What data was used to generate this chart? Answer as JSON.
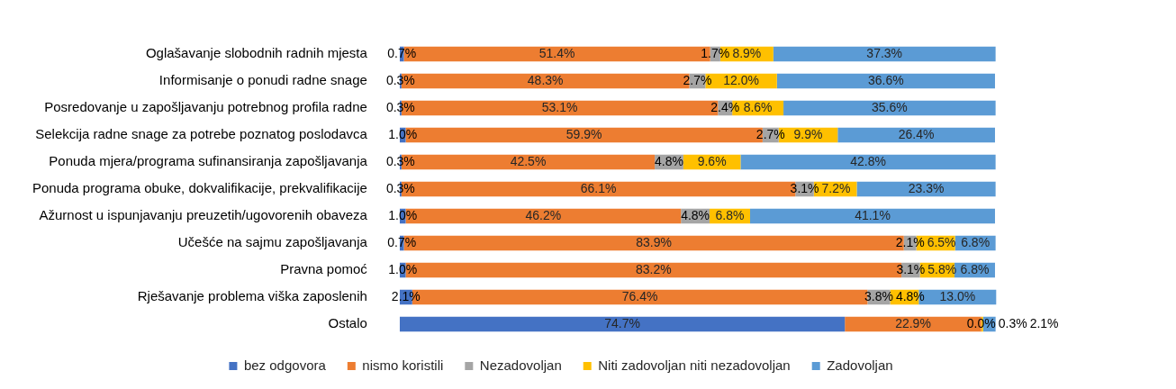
{
  "chart_data": {
    "type": "bar",
    "orientation": "horizontal",
    "stacked": true,
    "legend": "bottom",
    "grid": false,
    "categories": [
      "Oglašavanje slobodnih radnih mjesta",
      "Informisanje o ponudi radne snage",
      "Posredovanje u zapošljavanju potrebnog profila radne",
      "Selekcija radne snage za potrebe poznatog poslodavca",
      "Ponuda mjera/programa sufinansiranja zapošljavanja",
      "Ponuda programa obuke, dokvalifikacije, prekvalifikacije",
      "Ažurnost u ispunjavanju preuzetih/ugovorenih obaveza",
      "Učešće na sajmu zapošljavanja",
      "Pravna pomoć",
      "Rješavanje problema viška zaposlenih",
      "Ostalo"
    ],
    "series": [
      {
        "name": "bez odgovora",
        "color": "#4472c4",
        "values": [
          0.7,
          0.3,
          0.3,
          1.0,
          0.3,
          0.3,
          1.0,
          0.7,
          1.0,
          2.1,
          74.7
        ],
        "value_labels": [
          "0.7%",
          "0.3%",
          "0.3%",
          "1.0%",
          "0.3%",
          "0.3%",
          "1.0%",
          "0.7%",
          "1.0%",
          "2.1%",
          "74.7%"
        ]
      },
      {
        "name": "nismo koristili",
        "color": "#ed7d31",
        "values": [
          51.4,
          48.3,
          53.1,
          59.9,
          42.5,
          66.1,
          46.2,
          83.9,
          83.2,
          76.4,
          22.9
        ],
        "value_labels": [
          "51.4%",
          "48.3%",
          "53.1%",
          "59.9%",
          "42.5%",
          "66.1%",
          "46.2%",
          "83.9%",
          "83.2%",
          "76.4%",
          "22.9%"
        ]
      },
      {
        "name": "Nezadovoljan",
        "color": "#a5a5a5",
        "values": [
          1.7,
          2.7,
          2.4,
          2.7,
          4.8,
          3.1,
          4.8,
          2.1,
          3.1,
          3.8,
          0.0
        ],
        "value_labels": [
          "1.7%",
          "2.7%",
          "2.4%",
          "2.7%",
          "4.8%",
          "3.1%",
          "4.8%",
          "2.1%",
          "3.1%",
          "3.8%",
          "0.0%"
        ]
      },
      {
        "name": "Niti zadovoljan niti nezadovoljan",
        "color": "#ffc000",
        "values": [
          8.9,
          12.0,
          8.6,
          9.9,
          9.6,
          7.2,
          6.8,
          6.5,
          5.8,
          4.8,
          0.3
        ],
        "value_labels": [
          "8.9%",
          "12.0%",
          "8.6%",
          "9.9%",
          "9.6%",
          "7.2%",
          "6.8%",
          "6.5%",
          "5.8%",
          "4.8%",
          "0.3%"
        ]
      },
      {
        "name": "Zadovoljan",
        "color": "#5b9bd5",
        "values": [
          37.3,
          36.6,
          35.6,
          26.4,
          42.8,
          23.3,
          41.1,
          6.8,
          6.8,
          13.0,
          2.1
        ],
        "value_labels": [
          "37.3%",
          "36.6%",
          "35.6%",
          "26.4%",
          "42.8%",
          "23.3%",
          "41.1%",
          "6.8%",
          "6.8%",
          "13.0%",
          "2.1%"
        ]
      }
    ]
  }
}
